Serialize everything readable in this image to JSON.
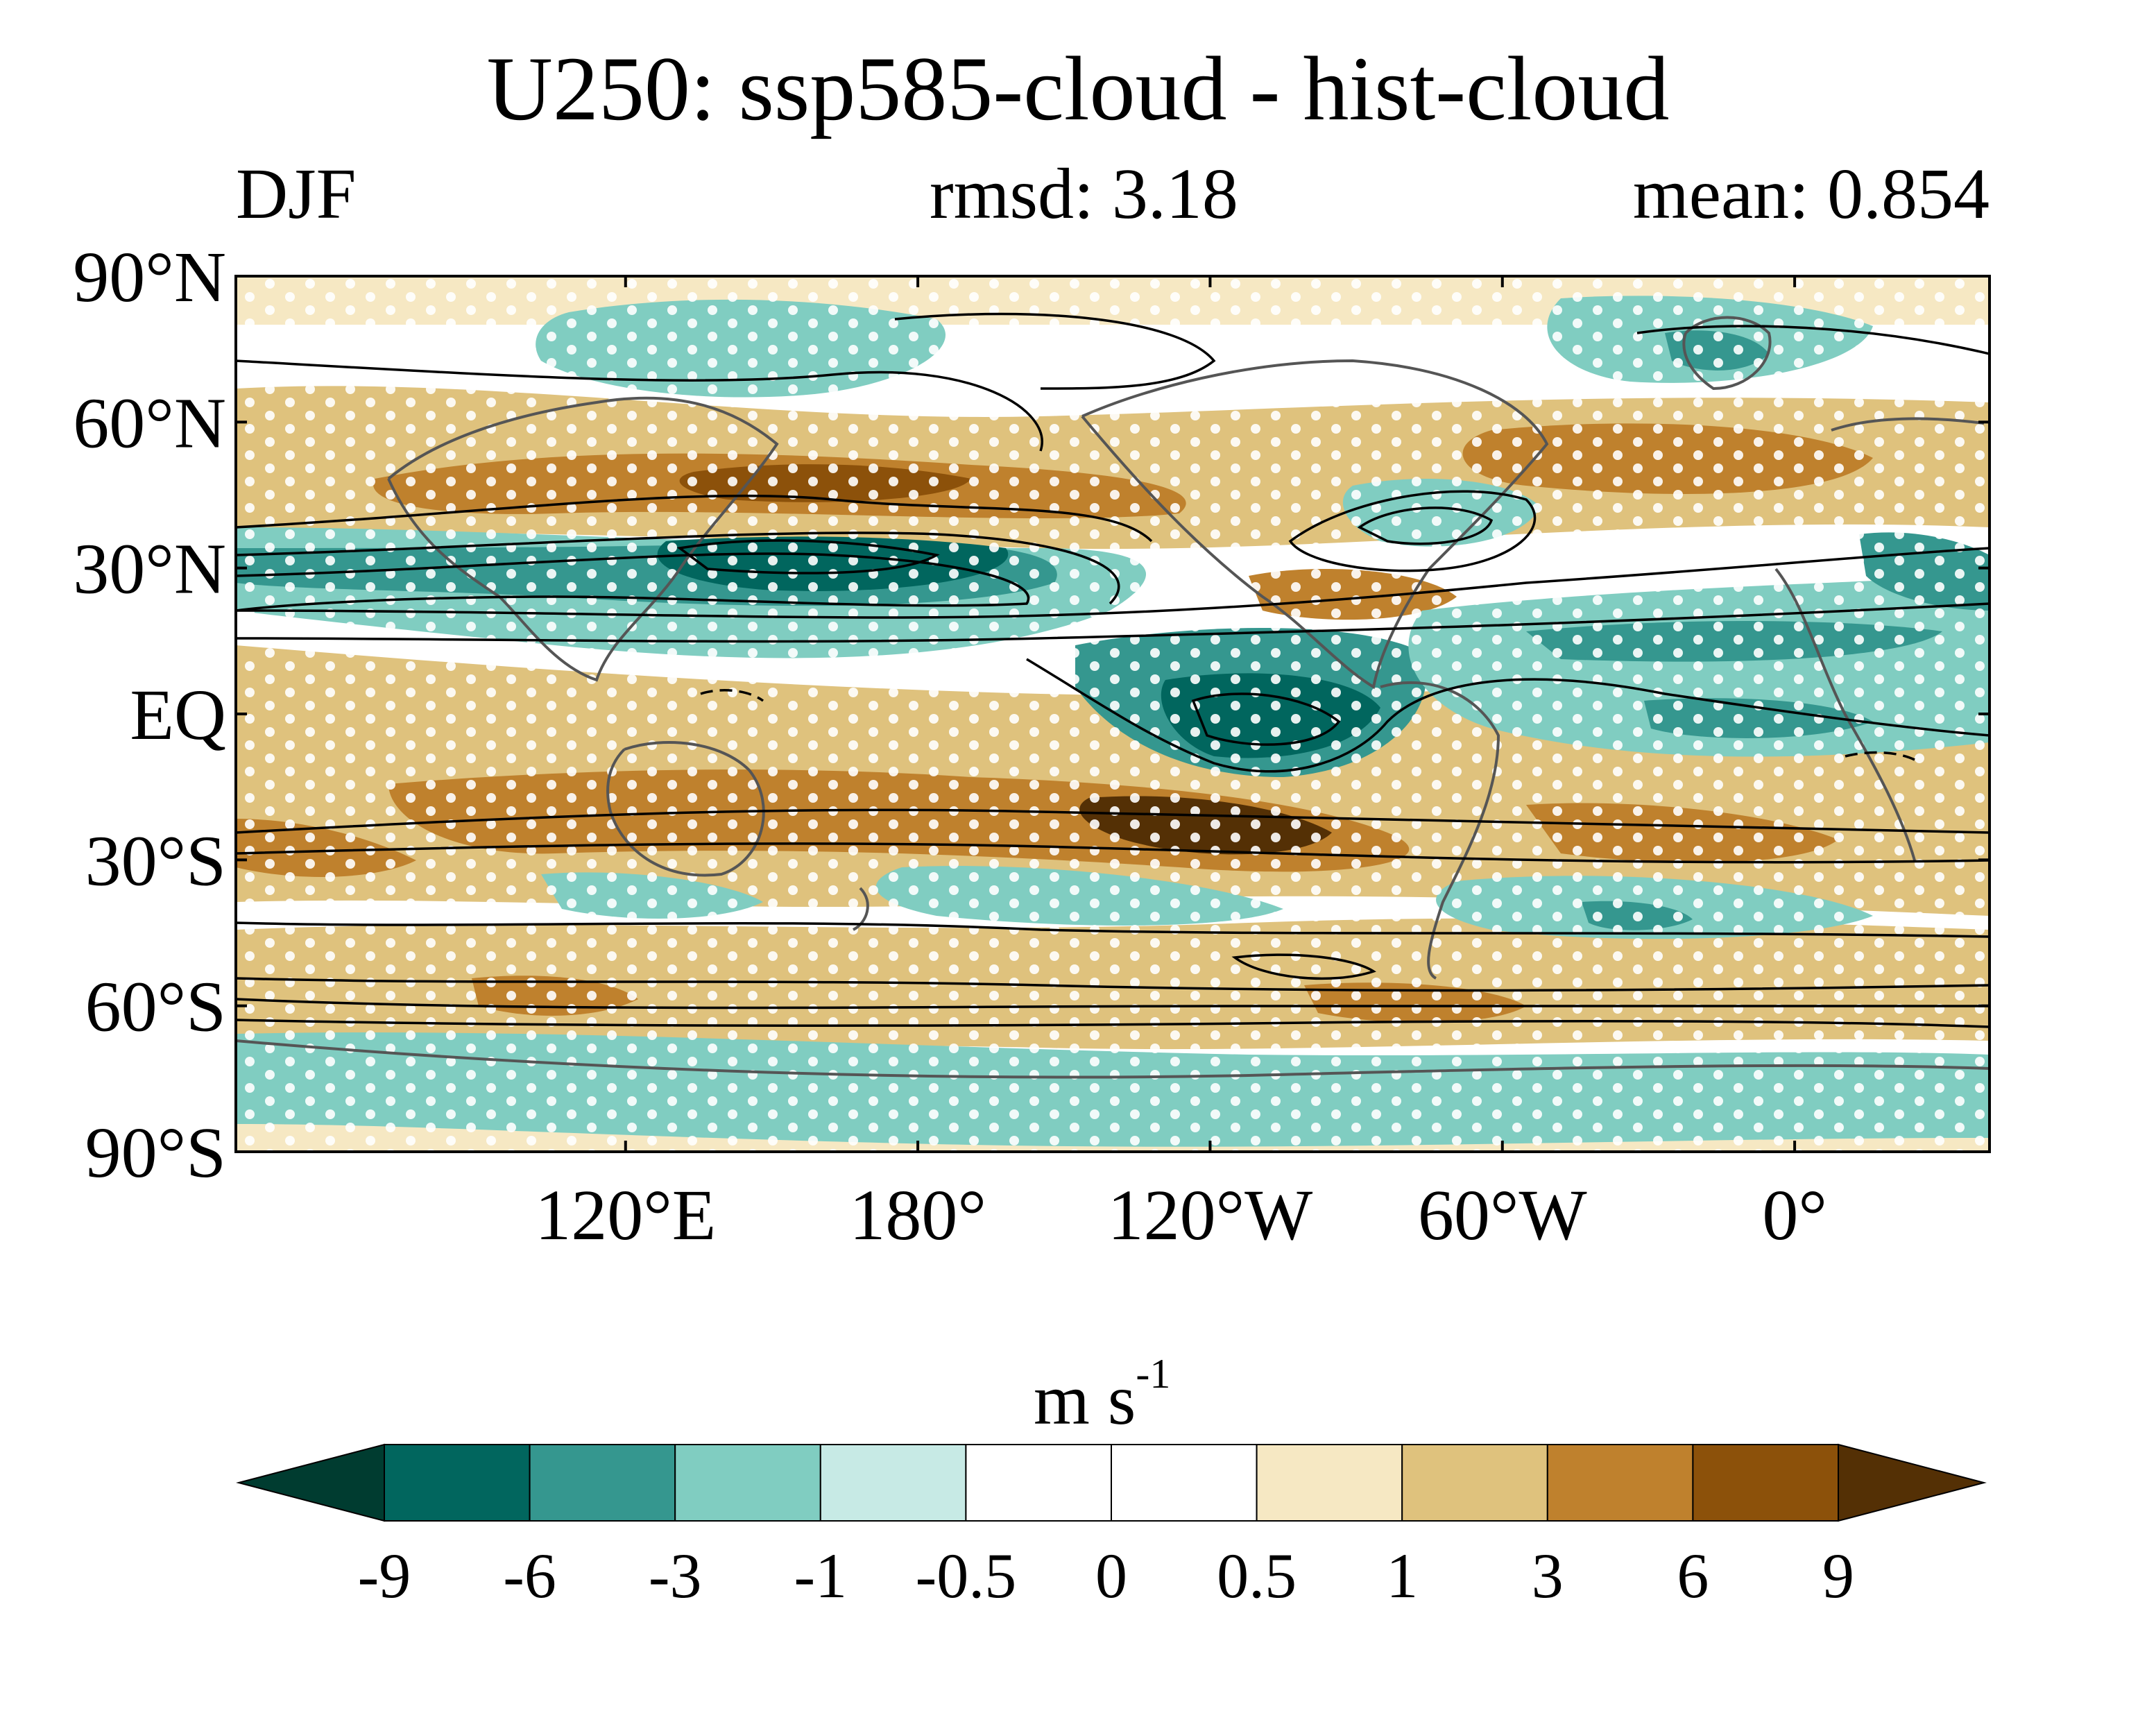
{
  "header": {
    "title": "U250: ssp585-cloud - hist-cloud",
    "season": "DJF",
    "rmsd": "rmsd: 3.18",
    "mean": "mean: 0.854"
  },
  "axes": {
    "lat_labels": [
      "90°N",
      "60°N",
      "30°N",
      "EQ",
      "30°S",
      "60°S",
      "90°S"
    ],
    "lat_values": [
      90,
      60,
      30,
      0,
      -30,
      -60,
      -90
    ],
    "lon_labels": [
      "120°E",
      "180°",
      "120°W",
      "60°W",
      "0°"
    ],
    "lon_values": [
      120,
      180,
      240,
      300,
      360
    ],
    "lon_range": [
      40,
      400
    ],
    "lat_range": [
      -90,
      90
    ]
  },
  "colorbar": {
    "units_base": "m s",
    "units_exp": "-1",
    "levels": [
      "-9",
      "-6",
      "-3",
      "-1",
      "-0.5",
      "0",
      "0.5",
      "1",
      "3",
      "6",
      "9"
    ],
    "colors": [
      "#003c30",
      "#01665e",
      "#35978f",
      "#80cdc1",
      "#c7eae5",
      "#ffffff",
      "#ffffff",
      "#f6e8c3",
      "#dfc27d",
      "#bf812d",
      "#8c510a",
      "#543005"
    ]
  },
  "map": {
    "ocean_color": "#ffffff",
    "coastline_color": "#555555",
    "contour_color": "#000000",
    "stipple_color": "#ffffff"
  }
}
